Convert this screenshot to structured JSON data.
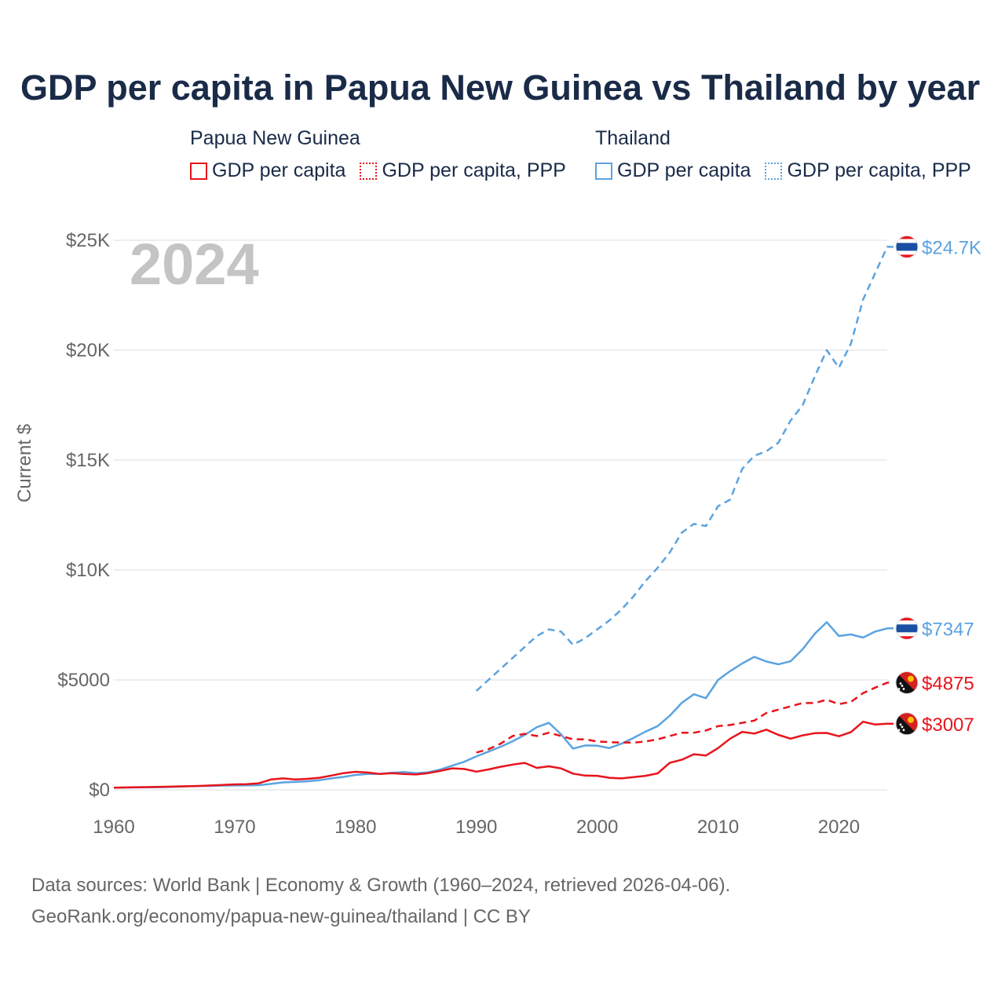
{
  "colors": {
    "png": "#e8141c",
    "thailand": "#5ba3e0",
    "title": "#1a2b48",
    "grid": "#e3e3e3",
    "muted": "#666666"
  },
  "chart_data": {
    "type": "line",
    "title": "GDP per capita in Papua New Guinea vs Thailand by year",
    "year_label": "2024",
    "ylabel": "Current $",
    "xlabel": "",
    "xlim": [
      1960,
      2024
    ],
    "ylim": [
      0,
      25000
    ],
    "x_ticks": [
      "1960",
      "1970",
      "1980",
      "1990",
      "2000",
      "2010",
      "2020"
    ],
    "y_ticks": [
      "$0",
      "$5000",
      "$10K",
      "$15K",
      "$20K",
      "$25K"
    ],
    "legend": {
      "groups": [
        {
          "name": "Papua New Guinea",
          "items": [
            "GDP per capita",
            "GDP per capita, PPP"
          ]
        },
        {
          "name": "Thailand",
          "items": [
            "GDP per capita",
            "GDP per capita, PPP"
          ]
        }
      ],
      "placement": "top"
    },
    "series": [
      {
        "name": "Thailand GDP per capita, PPP",
        "country": "Thailand",
        "style": "dashed",
        "color_key": "thailand",
        "end_label": "$24.7K",
        "x": [
          1990,
          1991,
          1992,
          1993,
          1994,
          1995,
          1996,
          1997,
          1998,
          1999,
          2000,
          2001,
          2002,
          2003,
          2004,
          2005,
          2006,
          2007,
          2008,
          2009,
          2010,
          2011,
          2012,
          2013,
          2014,
          2015,
          2016,
          2017,
          2018,
          2019,
          2020,
          2021,
          2022,
          2023,
          2024
        ],
        "values": [
          4500,
          5000,
          5500,
          6000,
          6500,
          7000,
          7300,
          7200,
          6600,
          6900,
          7300,
          7700,
          8200,
          8800,
          9500,
          10100,
          10800,
          11700,
          12100,
          12000,
          12900,
          13200,
          14600,
          15200,
          15400,
          15800,
          16800,
          17500,
          18800,
          20000,
          19200,
          20300,
          22300,
          23500,
          24700
        ]
      },
      {
        "name": "Thailand GDP per capita",
        "country": "Thailand",
        "style": "solid",
        "color_key": "thailand",
        "end_label": "$7347",
        "x": [
          1960,
          1961,
          1962,
          1963,
          1964,
          1965,
          1966,
          1967,
          1968,
          1969,
          1970,
          1971,
          1972,
          1973,
          1974,
          1975,
          1976,
          1977,
          1978,
          1979,
          1980,
          1981,
          1982,
          1983,
          1984,
          1985,
          1986,
          1987,
          1988,
          1989,
          1990,
          1991,
          1992,
          1993,
          1994,
          1995,
          1996,
          1997,
          1998,
          1999,
          2000,
          2001,
          2002,
          2003,
          2004,
          2005,
          2006,
          2007,
          2008,
          2009,
          2010,
          2011,
          2012,
          2013,
          2014,
          2015,
          2016,
          2017,
          2018,
          2019,
          2020,
          2021,
          2022,
          2023,
          2024
        ],
        "values": [
          100,
          105,
          110,
          115,
          125,
          140,
          160,
          170,
          180,
          195,
          200,
          205,
          215,
          270,
          340,
          360,
          390,
          440,
          520,
          590,
          680,
          720,
          730,
          780,
          810,
          760,
          800,
          920,
          1100,
          1280,
          1520,
          1740,
          1960,
          2210,
          2500,
          2850,
          3050,
          2530,
          1880,
          2020,
          2010,
          1900,
          2100,
          2360,
          2650,
          2900,
          3370,
          3960,
          4350,
          4170,
          5000,
          5400,
          5750,
          6050,
          5840,
          5710,
          5850,
          6400,
          7100,
          7630,
          7000,
          7070,
          6930,
          7200,
          7347
        ]
      },
      {
        "name": "Papua New Guinea GDP per capita, PPP",
        "country": "Papua New Guinea",
        "style": "dashed",
        "color_key": "png",
        "end_label": "$4875",
        "x": [
          1990,
          1991,
          1992,
          1993,
          1994,
          1995,
          1996,
          1997,
          1998,
          1999,
          2000,
          2001,
          2002,
          2003,
          2004,
          2005,
          2006,
          2007,
          2008,
          2009,
          2010,
          2011,
          2012,
          2013,
          2014,
          2015,
          2016,
          2017,
          2018,
          2019,
          2020,
          2021,
          2022,
          2023,
          2024
        ],
        "values": [
          1700,
          1850,
          2100,
          2450,
          2550,
          2450,
          2600,
          2450,
          2300,
          2300,
          2200,
          2170,
          2150,
          2150,
          2200,
          2300,
          2450,
          2600,
          2600,
          2700,
          2900,
          2950,
          3050,
          3150,
          3500,
          3650,
          3800,
          3950,
          3950,
          4100,
          3900,
          4000,
          4400,
          4650,
          4875
        ]
      },
      {
        "name": "Papua New Guinea GDP per capita",
        "country": "Papua New Guinea",
        "style": "solid",
        "color_key": "png",
        "end_label": "$3007",
        "x": [
          1960,
          1961,
          1962,
          1963,
          1964,
          1965,
          1966,
          1967,
          1968,
          1969,
          1970,
          1971,
          1972,
          1973,
          1974,
          1975,
          1976,
          1977,
          1978,
          1979,
          1980,
          1981,
          1982,
          1983,
          1984,
          1985,
          1986,
          1987,
          1988,
          1989,
          1990,
          1991,
          1992,
          1993,
          1994,
          1995,
          1996,
          1997,
          1998,
          1999,
          2000,
          2001,
          2002,
          2003,
          2004,
          2005,
          2006,
          2007,
          2008,
          2009,
          2010,
          2011,
          2012,
          2013,
          2014,
          2015,
          2016,
          2017,
          2018,
          2019,
          2020,
          2021,
          2022,
          2023,
          2024
        ],
        "values": [
          100,
          110,
          120,
          130,
          140,
          150,
          165,
          180,
          200,
          220,
          250,
          260,
          300,
          470,
          520,
          470,
          500,
          550,
          650,
          760,
          820,
          790,
          720,
          760,
          720,
          700,
          760,
          860,
          980,
          950,
          830,
          930,
          1050,
          1150,
          1230,
          1000,
          1070,
          980,
          740,
          650,
          640,
          550,
          520,
          580,
          640,
          750,
          1230,
          1370,
          1620,
          1560,
          1900,
          2330,
          2640,
          2560,
          2740,
          2500,
          2330,
          2480,
          2580,
          2590,
          2440,
          2630,
          3100,
          2970,
          3007
        ]
      }
    ]
  },
  "source": {
    "line1": "Data sources: World Bank | Economy & Growth (1960–2024, retrieved 2026-04-06).",
    "line2": "GeoRank.org/economy/papua-new-guinea/thailand | CC BY"
  }
}
